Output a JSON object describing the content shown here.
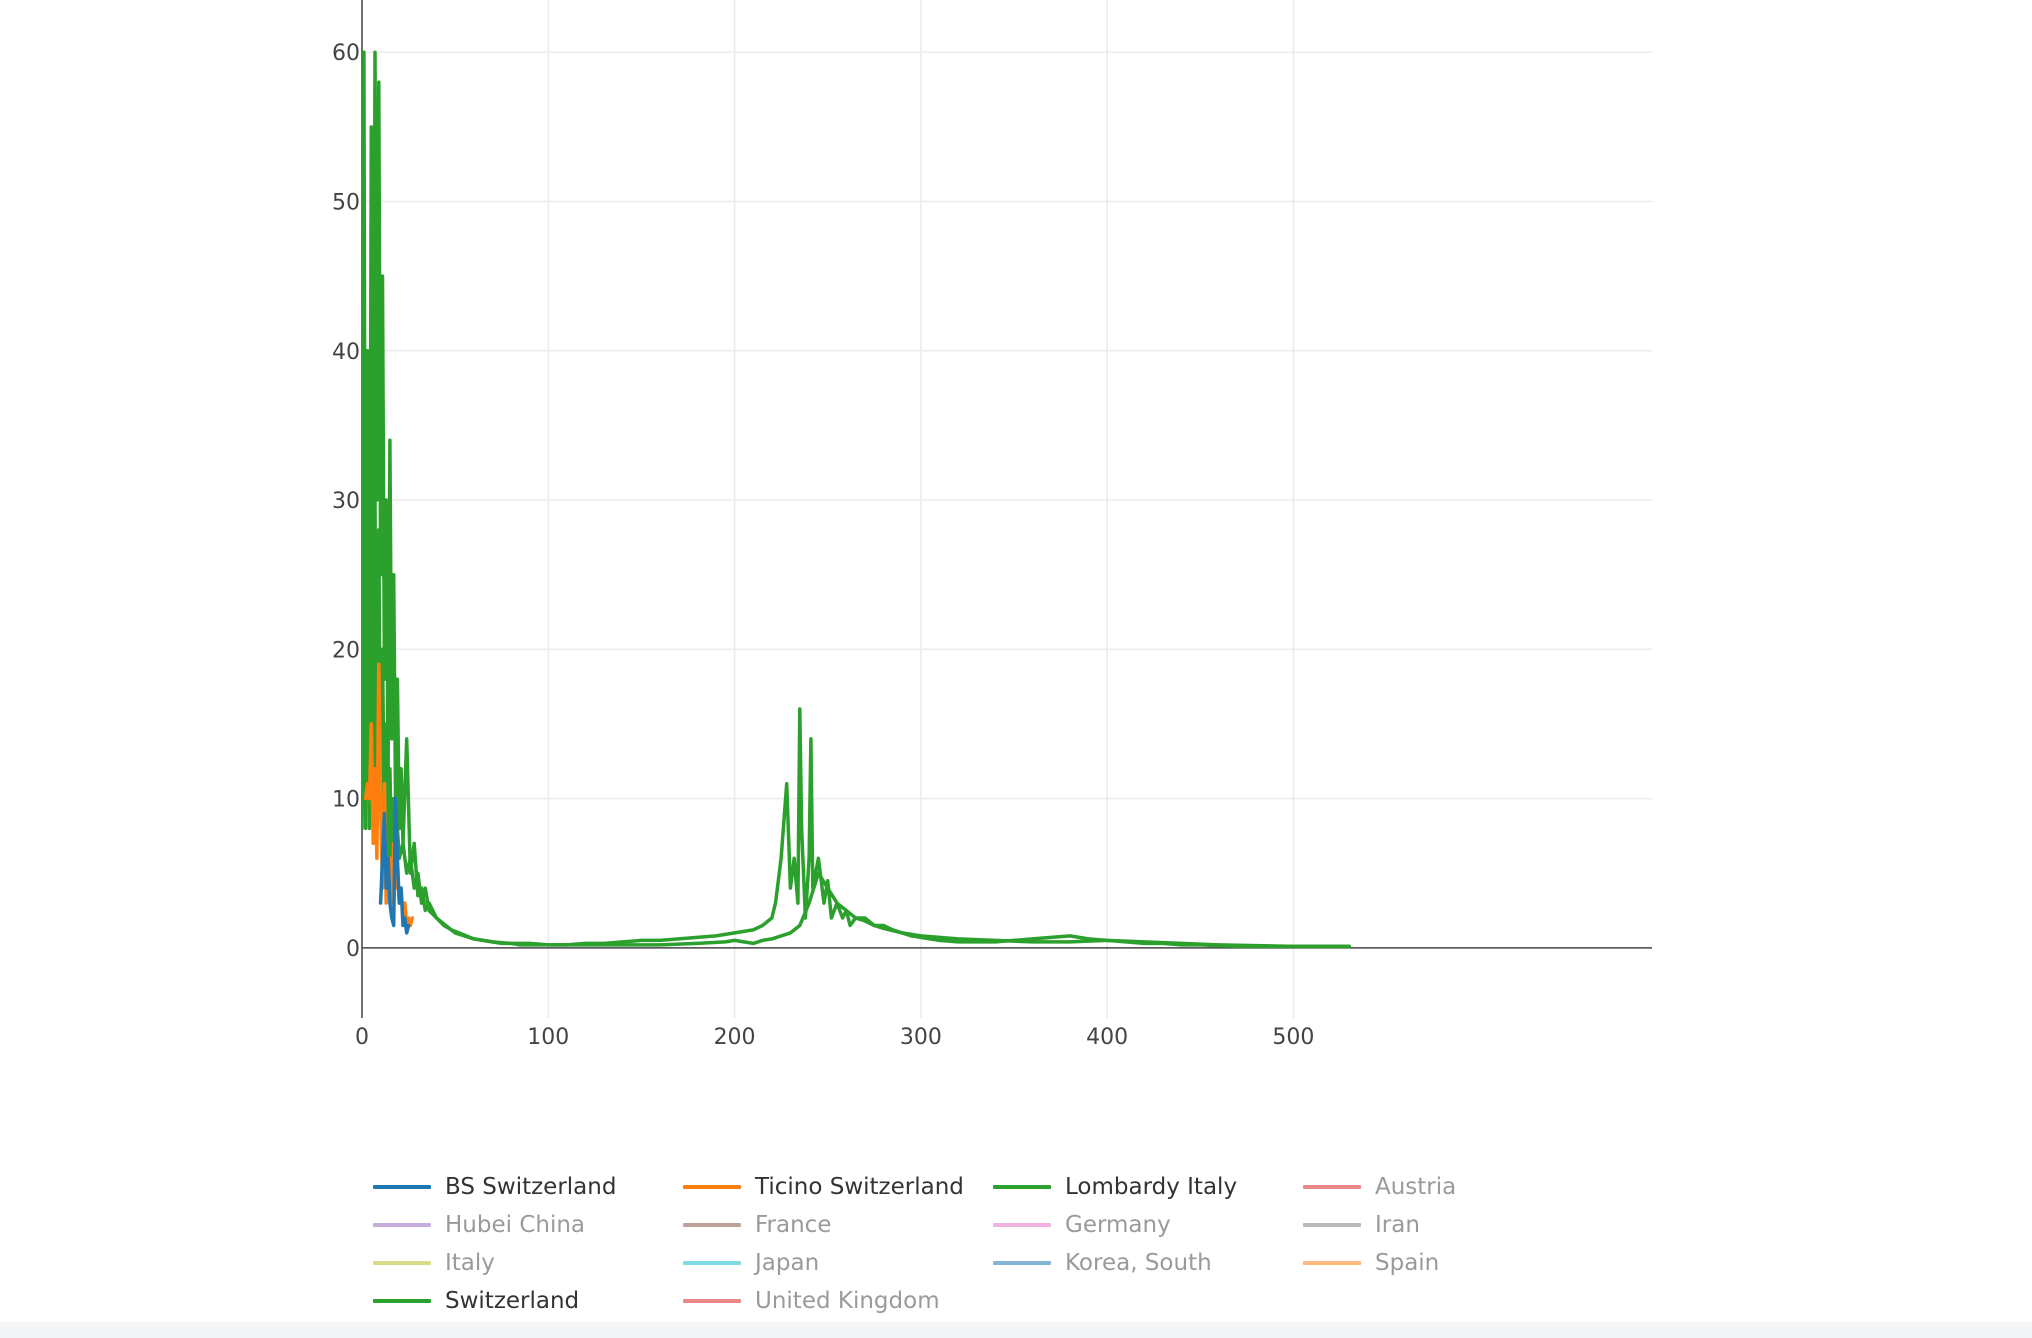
{
  "chart_data": {
    "type": "line",
    "title": "",
    "xlabel": "",
    "ylabel": "",
    "xlim": [
      0,
      530
    ],
    "ylim": [
      -5,
      62
    ],
    "grid": true,
    "x_ticks": [
      0,
      100,
      200,
      300,
      400,
      500
    ],
    "y_ticks": [
      0,
      10,
      20,
      30,
      40,
      50,
      60
    ],
    "x_tick_labels": [
      "0",
      "100",
      "200",
      "300",
      "400",
      "500"
    ],
    "y_tick_labels": [
      "0",
      "10",
      "20",
      "30",
      "40",
      "50",
      "60"
    ],
    "legend_placement": "bottom",
    "series": [
      {
        "name": "BS Switzerland",
        "color": "#1f77b4",
        "visible": true,
        "x": [
          10,
          12,
          13,
          14,
          15,
          16,
          17,
          18,
          19,
          20,
          21,
          22,
          23,
          24,
          25
        ],
        "y": [
          3,
          9,
          4,
          6,
          3,
          2,
          1.5,
          10,
          6,
          3,
          4,
          1.5,
          2,
          1,
          1.5
        ]
      },
      {
        "name": "Ticino Switzerland",
        "color": "#ff7f0e",
        "visible": true,
        "x": [
          2,
          3,
          4,
          5,
          6,
          7,
          8,
          9,
          10,
          11,
          12,
          13,
          14,
          15,
          16,
          17,
          18,
          19,
          20,
          21,
          22,
          23,
          24,
          25,
          26,
          27
        ],
        "y": [
          10,
          11,
          10,
          15,
          7,
          12,
          6,
          19,
          10,
          4,
          11,
          3,
          6,
          6,
          3,
          7,
          4,
          5,
          3,
          4,
          2,
          3,
          1.5,
          2,
          1.5,
          2
        ]
      },
      {
        "name": "Lombardy Italy",
        "color": "#2ca02c",
        "visible": true,
        "x": [
          0,
          1,
          2,
          3,
          4,
          5,
          6,
          7,
          8,
          9,
          10,
          11,
          12,
          13,
          14,
          15,
          16,
          17,
          18,
          19,
          20,
          21,
          22,
          24,
          26,
          28,
          30,
          32,
          34,
          36,
          40,
          44,
          48,
          52,
          56,
          60,
          65,
          70,
          75,
          80,
          85,
          90,
          100,
          110,
          120,
          130,
          140,
          150,
          160,
          170,
          180,
          190,
          200,
          210,
          215,
          220,
          222,
          225,
          228,
          230,
          232,
          234,
          235,
          236,
          238,
          240,
          241,
          242,
          245,
          248,
          250,
          252,
          255,
          258,
          260,
          262,
          265,
          270,
          275,
          280,
          285,
          290,
          295,
          300,
          310,
          320,
          330,
          340,
          350,
          360,
          370,
          380,
          390,
          400,
          410,
          420,
          430,
          440,
          450,
          460,
          470,
          480,
          490,
          500,
          510,
          520,
          530
        ],
        "y": [
          15,
          60,
          8,
          40,
          12,
          55,
          20,
          60,
          30,
          58,
          25,
          45,
          18,
          30,
          12,
          34,
          14,
          25,
          10,
          18,
          8,
          12,
          7,
          14,
          5,
          7,
          3.5,
          4,
          2.5,
          3,
          2,
          1.5,
          1.2,
          1,
          0.8,
          0.6,
          0.5,
          0.4,
          0.3,
          0.3,
          0.2,
          0.2,
          0.2,
          0.2,
          0.3,
          0.3,
          0.4,
          0.5,
          0.5,
          0.6,
          0.7,
          0.8,
          1,
          1.2,
          1.5,
          2,
          3,
          6,
          11,
          4,
          6,
          3,
          16,
          8,
          2,
          6,
          14,
          4,
          6,
          3,
          4.5,
          2,
          3,
          2,
          2.5,
          1.5,
          2,
          2,
          1.5,
          1.5,
          1.2,
          1,
          0.8,
          0.7,
          0.5,
          0.4,
          0.4,
          0.4,
          0.5,
          0.6,
          0.7,
          0.8,
          0.6,
          0.5,
          0.4,
          0.3,
          0.3,
          0.2,
          0.2,
          0.15,
          0.1,
          0.1,
          0.1,
          0.1,
          0.1,
          0.1,
          0.1
        ]
      },
      {
        "name": "Austria",
        "color": "#d62728",
        "visible": false,
        "x": [],
        "y": []
      },
      {
        "name": "Hubei China",
        "color": "#9467bd",
        "visible": false,
        "x": [],
        "y": []
      },
      {
        "name": "France",
        "color": "#8c564b",
        "visible": false,
        "x": [],
        "y": []
      },
      {
        "name": "Germany",
        "color": "#e377c2",
        "visible": false,
        "x": [],
        "y": []
      },
      {
        "name": "Iran",
        "color": "#7f7f7f",
        "visible": false,
        "x": [],
        "y": []
      },
      {
        "name": "Italy",
        "color": "#bcbd22",
        "visible": false,
        "x": [],
        "y": []
      },
      {
        "name": "Japan",
        "color": "#17becf",
        "visible": false,
        "x": [],
        "y": []
      },
      {
        "name": "Korea, South",
        "color": "#1f77b4",
        "visible": false,
        "x": [],
        "y": []
      },
      {
        "name": "Spain",
        "color": "#ff7f0e",
        "visible": false,
        "x": [],
        "y": []
      },
      {
        "name": "Switzerland",
        "color": "#2ca02c",
        "visible": true,
        "x": [
          0,
          1,
          2,
          3,
          4,
          5,
          6,
          7,
          8,
          9,
          10,
          11,
          12,
          13,
          14,
          15,
          16,
          17,
          18,
          19,
          20,
          22,
          24,
          26,
          28,
          30,
          32,
          34,
          36,
          40,
          45,
          50,
          55,
          60,
          65,
          70,
          80,
          90,
          100,
          120,
          140,
          160,
          180,
          195,
          200,
          205,
          210,
          215,
          220,
          225,
          230,
          235,
          240,
          245,
          250,
          255,
          260,
          265,
          270,
          275,
          280,
          290,
          300,
          320,
          340,
          360,
          380,
          400,
          420,
          440,
          460,
          480,
          500,
          520,
          530
        ],
        "y": [
          8,
          20,
          12,
          30,
          8,
          25,
          10,
          30,
          12,
          28,
          10,
          20,
          8,
          15,
          6,
          12,
          5,
          10,
          4,
          8,
          6,
          7,
          5,
          6,
          4,
          5,
          3,
          4,
          2.5,
          2,
          1.5,
          1,
          0.8,
          0.6,
          0.5,
          0.4,
          0.3,
          0.3,
          0.2,
          0.2,
          0.2,
          0.2,
          0.3,
          0.4,
          0.5,
          0.4,
          0.3,
          0.5,
          0.6,
          0.8,
          1,
          1.5,
          3,
          5,
          4,
          3,
          2.5,
          2,
          1.8,
          1.5,
          1.3,
          1,
          0.8,
          0.6,
          0.5,
          0.4,
          0.4,
          0.5,
          0.4,
          0.3,
          0.2,
          0.15,
          0.1,
          0.1,
          0.1
        ]
      },
      {
        "name": "United Kingdom",
        "color": "#d62728",
        "visible": false,
        "x": [],
        "y": []
      }
    ]
  },
  "legend": {
    "items": [
      {
        "label": "BS Switzerland",
        "color": "#1f77b4",
        "active": true
      },
      {
        "label": "Ticino Switzerland",
        "color": "#ff7f0e",
        "active": true
      },
      {
        "label": "Lombardy Italy",
        "color": "#2ca02c",
        "active": true
      },
      {
        "label": "Austria",
        "color": "#d62728",
        "active": false
      },
      {
        "label": "Hubei China",
        "color": "#9467bd",
        "active": false
      },
      {
        "label": "France",
        "color": "#8c564b",
        "active": false
      },
      {
        "label": "Germany",
        "color": "#e377c2",
        "active": false
      },
      {
        "label": "Iran",
        "color": "#7f7f7f",
        "active": false
      },
      {
        "label": "Italy",
        "color": "#bcbd22",
        "active": false
      },
      {
        "label": "Japan",
        "color": "#17becf",
        "active": false
      },
      {
        "label": "Korea, South",
        "color": "#1f77b4",
        "active": false
      },
      {
        "label": "Spain",
        "color": "#ff7f0e",
        "active": false
      },
      {
        "label": "Switzerland",
        "color": "#2ca02c",
        "active": true
      },
      {
        "label": "United Kingdom",
        "color": "#d62728",
        "active": false
      }
    ]
  }
}
